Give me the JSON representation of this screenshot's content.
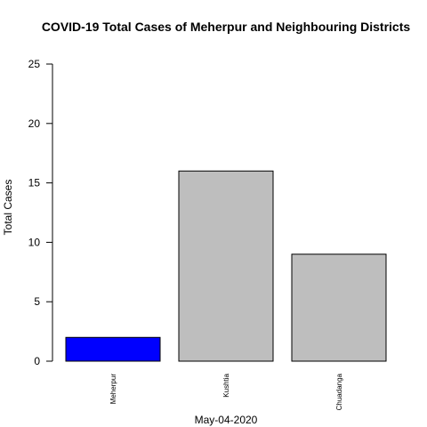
{
  "chart_data": {
    "type": "bar",
    "title": "COVID-19 Total Cases of Meherpur and Neighbouring Districts",
    "xlabel": "May-04-2020",
    "ylabel": "Total Cases",
    "categories": [
      "Meherpur",
      "Kushtia",
      "Chuadanga"
    ],
    "values": [
      2,
      16,
      9
    ],
    "bar_colors": [
      "#0000ff",
      "#bebebe",
      "#bebebe"
    ],
    "ylim": [
      0,
      25
    ],
    "yticks": [
      0,
      5,
      10,
      15,
      20,
      25
    ],
    "grid": false,
    "legend": "none"
  }
}
